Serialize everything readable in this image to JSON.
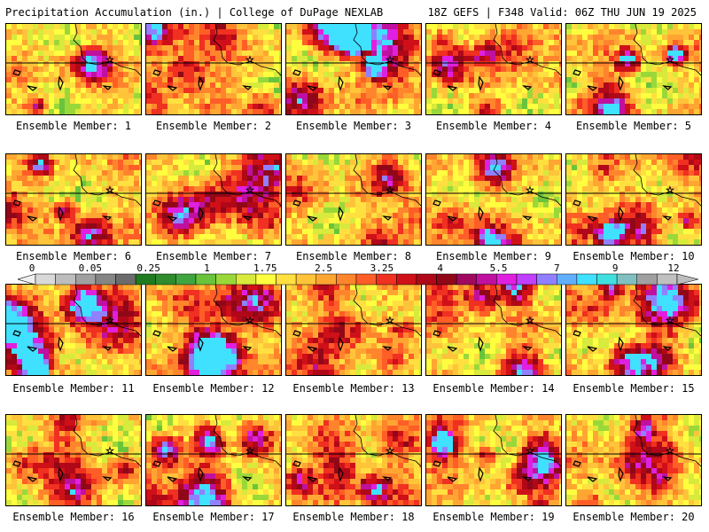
{
  "header": {
    "left_text": "Precipitation Accumulation (in.) | College of DuPage NEXLAB",
    "right_text": "18Z GEFS | F348 Valid: 06Z THU JUN 19 2025"
  },
  "panels": [
    {
      "label": "Ensemble Member: 1",
      "intensity": 0.45,
      "seed": 1
    },
    {
      "label": "Ensemble Member: 2",
      "intensity": 0.35,
      "seed": 2
    },
    {
      "label": "Ensemble Member: 3",
      "intensity": 0.7,
      "seed": 3
    },
    {
      "label": "Ensemble Member: 4",
      "intensity": 0.4,
      "seed": 4
    },
    {
      "label": "Ensemble Member: 5",
      "intensity": 0.65,
      "seed": 5
    },
    {
      "label": "Ensemble Member: 6",
      "intensity": 0.5,
      "seed": 6
    },
    {
      "label": "Ensemble Member: 7",
      "intensity": 0.45,
      "seed": 7
    },
    {
      "label": "Ensemble Member: 8",
      "intensity": 0.55,
      "seed": 8
    },
    {
      "label": "Ensemble Member: 9",
      "intensity": 0.5,
      "seed": 9
    },
    {
      "label": "Ensemble Member: 10",
      "intensity": 0.6,
      "seed": 10
    },
    {
      "label": "Ensemble Member: 11",
      "intensity": 0.8,
      "seed": 11
    },
    {
      "label": "Ensemble Member: 12",
      "intensity": 0.65,
      "seed": 12
    },
    {
      "label": "Ensemble Member: 13",
      "intensity": 0.4,
      "seed": 13
    },
    {
      "label": "Ensemble Member: 14",
      "intensity": 0.75,
      "seed": 14
    },
    {
      "label": "Ensemble Member: 15",
      "intensity": 0.65,
      "seed": 15
    },
    {
      "label": "Ensemble Member: 16",
      "intensity": 0.4,
      "seed": 16
    },
    {
      "label": "Ensemble Member: 17",
      "intensity": 0.65,
      "seed": 17
    },
    {
      "label": "Ensemble Member: 18",
      "intensity": 0.45,
      "seed": 18
    },
    {
      "label": "Ensemble Member: 19",
      "intensity": 0.7,
      "seed": 19
    },
    {
      "label": "Ensemble Member: 20",
      "intensity": 0.3,
      "seed": 20
    }
  ],
  "colorbar": {
    "tick_labels": [
      "0",
      "0.05",
      "0.25",
      "1",
      "1.75",
      "2.5",
      "3.25",
      "4",
      "5.5",
      "7",
      "9",
      "12"
    ],
    "colors": [
      "#d9d9d9",
      "#bdbdbd",
      "#a0a0a0",
      "#858585",
      "#6b6b6b",
      "#207a20",
      "#2e8b2e",
      "#3fa53f",
      "#69c43b",
      "#9ad83a",
      "#d8ea3b",
      "#ffff40",
      "#ffe040",
      "#ffc43a",
      "#ffa632",
      "#ff852c",
      "#ff5e26",
      "#f03020",
      "#d01018",
      "#b00818",
      "#900818",
      "#a00860",
      "#c010a0",
      "#e020e0",
      "#c040ff",
      "#9080ff",
      "#60b0ff",
      "#40e0ff",
      "#40e0e0",
      "#80c0c0",
      "#a0a0a0",
      "#c0c0c0"
    ]
  }
}
